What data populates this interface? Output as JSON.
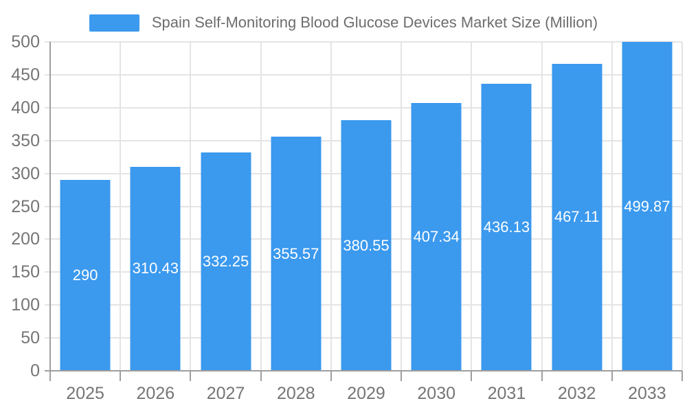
{
  "chart_data": {
    "type": "bar",
    "title": "Spain Self-Monitoring Blood Glucose Devices Market Size (Million)",
    "categories": [
      "2025",
      "2026",
      "2027",
      "2028",
      "2029",
      "2030",
      "2031",
      "2032",
      "2033"
    ],
    "values": [
      290,
      310.43,
      332.25,
      355.57,
      380.55,
      407.34,
      436.13,
      467.11,
      499.87
    ],
    "value_labels": [
      "290",
      "310.43",
      "332.25",
      "355.57",
      "380.55",
      "407.34",
      "436.13",
      "467.11",
      "499.87"
    ],
    "xlabel": "",
    "ylabel": "",
    "ylim": [
      0,
      500
    ],
    "yticks": [
      0,
      50,
      100,
      150,
      200,
      250,
      300,
      350,
      400,
      450,
      500
    ],
    "grid": true,
    "legend_position": "top",
    "colors": {
      "bar": "#3b99ee",
      "bar_label": "#ffffff",
      "axis": "#9e9e9e",
      "grid": "#e4e4e4",
      "tick_text": "#757575",
      "title_text": "#6d6d6d",
      "background": "#ffffff"
    }
  }
}
